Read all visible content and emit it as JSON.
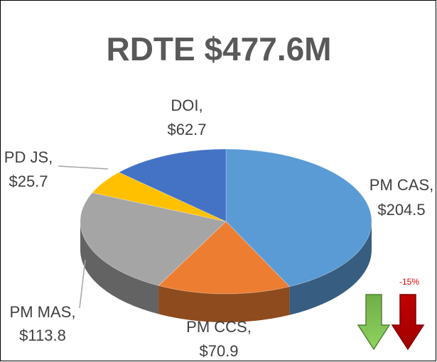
{
  "chart_data": {
    "type": "pie3d",
    "title": "RDTE $477.6M",
    "categories": [
      "PM CAS,",
      "PM CCS,",
      "PM MAS,",
      "PD JS,",
      "DOI,"
    ],
    "values": [
      204.5,
      70.9,
      113.8,
      25.7,
      62.7
    ],
    "value_labels": [
      "$204.5",
      "$70.9",
      "$113.8",
      "$25.7",
      "$62.7"
    ],
    "colors": [
      "#5b9bd5",
      "#ed7d31",
      "#a5a5a5",
      "#ffc000",
      "#4472c4"
    ],
    "annotation": "-15%"
  }
}
